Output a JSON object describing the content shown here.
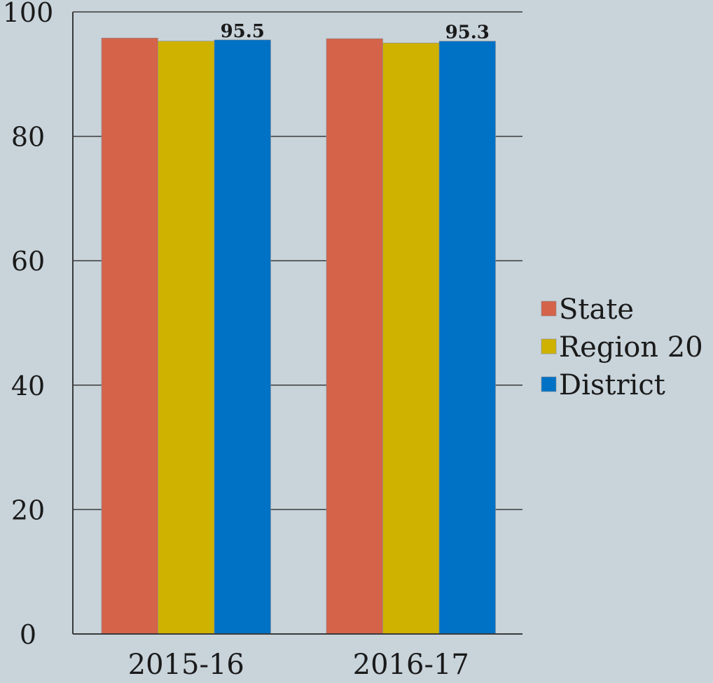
{
  "chart_data": {
    "type": "bar",
    "title": "",
    "xlabel": "",
    "ylabel": "",
    "categories": [
      "2015-16",
      "2016-17"
    ],
    "series": [
      {
        "name": "State",
        "color": "#d4634a",
        "values": [
          95.8,
          95.7
        ]
      },
      {
        "name": "Region 20",
        "color": "#cfb200",
        "values": [
          95.3,
          95.0
        ]
      },
      {
        "name": "District",
        "color": "#0072c6",
        "values": [
          95.5,
          95.3
        ]
      }
    ],
    "data_labels": [
      {
        "series": 2,
        "category": 0,
        "text": "95.5"
      },
      {
        "series": 2,
        "category": 1,
        "text": "95.3"
      }
    ],
    "ylim": [
      0,
      100
    ],
    "yticks": [
      "0",
      "20",
      "40",
      "60",
      "80",
      "100"
    ],
    "ytick_values": [
      0,
      20,
      40,
      60,
      80,
      100
    ],
    "grid": true,
    "legend_position": "right"
  }
}
